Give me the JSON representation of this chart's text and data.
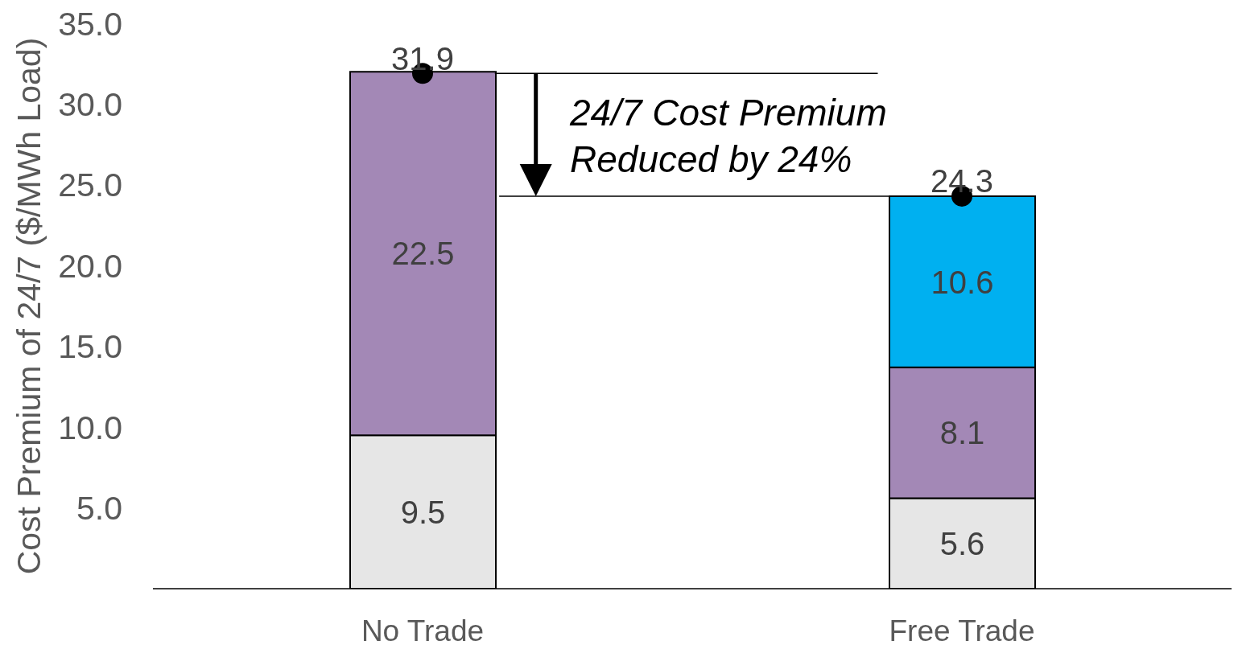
{
  "chart_data": {
    "type": "bar",
    "stacked": true,
    "categories": [
      "No Trade",
      "Free Trade"
    ],
    "ylabel": "Cost Premium of 24/7 ($/MWh Load)",
    "ylim": [
      0,
      35
    ],
    "yticks": [
      {
        "value": 5,
        "label": "5.0"
      },
      {
        "value": 10,
        "label": "10.0"
      },
      {
        "value": 15,
        "label": "15.0"
      },
      {
        "value": 20,
        "label": "20.0"
      },
      {
        "value": 25,
        "label": "25.0"
      },
      {
        "value": 30,
        "label": "30.0"
      },
      {
        "value": 35,
        "label": "35.0"
      }
    ],
    "series": [
      {
        "color": "#e6e6e6",
        "values": [
          9.5,
          5.6
        ]
      },
      {
        "color": "#a388b6",
        "values": [
          22.5,
          8.1
        ]
      },
      {
        "color": "#00b0f0",
        "values": [
          null,
          10.6
        ]
      },
      {
        "type": "scatter",
        "x": [
          "No Trade",
          "Free Trade"
        ],
        "color": "#000000",
        "values": [
          31.9,
          24.3
        ],
        "marker": "circle"
      }
    ],
    "data_labels": true,
    "ref_lines": [
      {
        "axis": "y",
        "value": 31.9,
        "color": "#000000"
      },
      {
        "axis": "y",
        "value": 24.3,
        "color": "#000000"
      }
    ],
    "annotations": [
      "24/7 Cost Premium Reduced by 24%"
    ]
  }
}
